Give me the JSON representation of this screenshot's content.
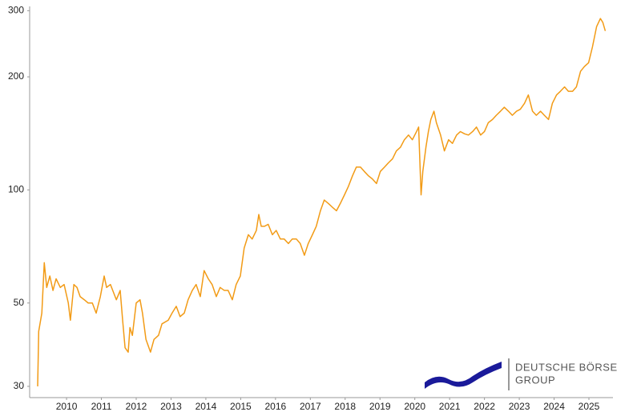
{
  "chart_data": {
    "type": "line",
    "log_scale": true,
    "color": "#f29b16",
    "xlim": [
      2008.94,
      2025.69
    ],
    "ylim": [
      28,
      305
    ],
    "xticks": [
      2010,
      2011,
      2012,
      2013,
      2014,
      2015,
      2016,
      2017,
      2018,
      2019,
      2020,
      2021,
      2022,
      2023,
      2024,
      2025
    ],
    "yticks": [
      30,
      50,
      100,
      200,
      300
    ],
    "x": [
      2009.17,
      2009.2,
      2009.29,
      2009.36,
      2009.43,
      2009.52,
      2009.61,
      2009.7,
      2009.82,
      2009.93,
      2010.05,
      2010.11,
      2010.21,
      2010.3,
      2010.39,
      2010.51,
      2010.62,
      2010.74,
      2010.85,
      2010.97,
      2011.08,
      2011.15,
      2011.26,
      2011.43,
      2011.54,
      2011.61,
      2011.68,
      2011.77,
      2011.82,
      2011.89,
      2012.0,
      2012.11,
      2012.18,
      2012.28,
      2012.41,
      2012.51,
      2012.64,
      2012.74,
      2012.92,
      2013.03,
      2013.15,
      2013.26,
      2013.38,
      2013.49,
      2013.61,
      2013.72,
      2013.84,
      2013.95,
      2014.07,
      2014.18,
      2014.3,
      2014.41,
      2014.53,
      2014.64,
      2014.76,
      2014.87,
      2014.99,
      2015.1,
      2015.22,
      2015.33,
      2015.45,
      2015.52,
      2015.59,
      2015.68,
      2015.79,
      2015.91,
      2016.02,
      2016.14,
      2016.25,
      2016.37,
      2016.48,
      2016.6,
      2016.71,
      2016.83,
      2016.94,
      2017.06,
      2017.17,
      2017.29,
      2017.4,
      2017.52,
      2017.63,
      2017.75,
      2017.86,
      2017.98,
      2018.09,
      2018.21,
      2018.32,
      2018.44,
      2018.55,
      2018.67,
      2018.78,
      2018.9,
      2019.01,
      2019.13,
      2019.24,
      2019.36,
      2019.47,
      2019.59,
      2019.7,
      2019.82,
      2019.93,
      2020.05,
      2020.11,
      2020.18,
      2020.23,
      2020.32,
      2020.39,
      2020.46,
      2020.55,
      2020.62,
      2020.74,
      2020.85,
      2020.97,
      2021.08,
      2021.2,
      2021.31,
      2021.43,
      2021.54,
      2021.66,
      2021.77,
      2021.89,
      2022.0,
      2022.11,
      2022.23,
      2022.34,
      2022.46,
      2022.57,
      2022.69,
      2022.8,
      2022.92,
      2023.03,
      2023.15,
      2023.26,
      2023.38,
      2023.49,
      2023.61,
      2023.72,
      2023.84,
      2023.95,
      2024.07,
      2024.18,
      2024.3,
      2024.41,
      2024.53,
      2024.64,
      2024.76,
      2024.87,
      2024.99,
      2025.1,
      2025.22,
      2025.33,
      2025.4,
      2025.47
    ],
    "values": [
      30,
      42,
      47,
      64,
      55,
      59,
      54,
      58,
      55,
      56,
      50,
      45,
      56,
      55,
      52,
      51,
      50,
      50,
      47,
      52,
      59,
      55,
      56,
      51,
      54,
      45,
      38,
      37,
      43,
      41,
      50,
      51,
      47,
      40,
      37,
      40,
      41,
      44,
      45,
      47,
      49,
      46,
      47,
      51,
      54,
      56,
      52,
      61,
      58,
      56,
      52,
      55,
      54,
      54,
      51,
      56,
      59,
      70,
      76,
      74,
      78,
      86,
      80,
      80,
      81,
      76,
      78,
      74,
      74,
      72,
      74,
      74,
      72,
      67,
      72,
      76,
      80,
      88,
      94,
      92,
      90,
      88,
      92,
      97,
      102,
      109,
      115,
      115,
      112,
      109,
      107,
      104,
      112,
      115,
      118,
      121,
      127,
      130,
      136,
      140,
      136,
      143,
      147,
      97,
      112,
      130,
      143,
      154,
      162,
      151,
      140,
      127,
      136,
      133,
      140,
      143,
      141,
      140,
      143,
      147,
      140,
      143,
      151,
      154,
      158,
      162,
      166,
      162,
      158,
      162,
      164,
      170,
      179,
      162,
      158,
      162,
      158,
      154,
      170,
      179,
      183,
      188,
      183,
      183,
      188,
      207,
      213,
      218,
      240,
      272,
      286,
      279,
      265
    ]
  },
  "logo": {
    "line1": "DEUTSCHE BÖRSE",
    "line2": "GROUP"
  }
}
